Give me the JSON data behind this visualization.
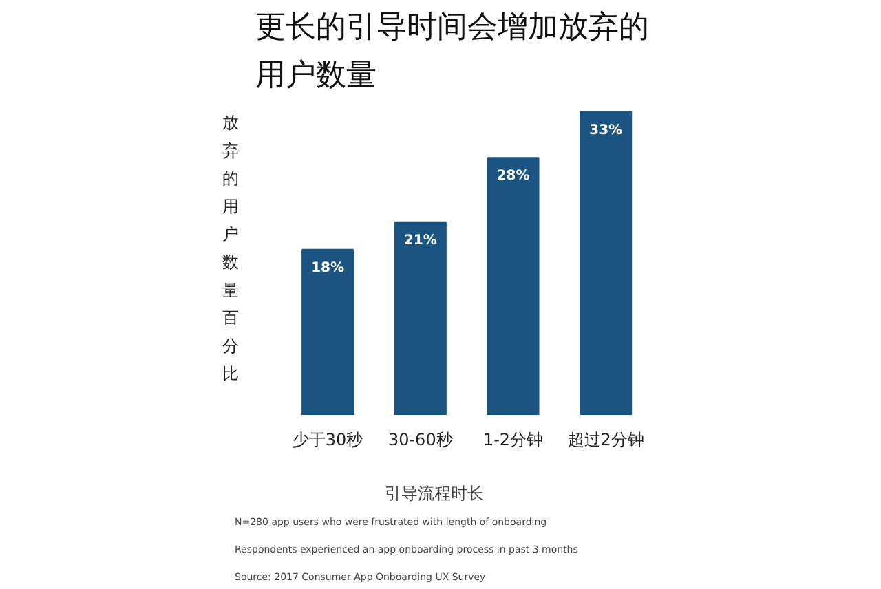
{
  "chart_data": {
    "type": "bar",
    "title": "更长的引导时间会增加放弃的用户数量",
    "xlabel": "引导流程时长",
    "ylabel": "放弃的用户数量百分比",
    "categories": [
      "少于30秒",
      "30-60秒",
      "1-2分钟",
      "超过2分钟"
    ],
    "values": [
      18,
      21,
      28,
      33
    ],
    "color": "#1b5480",
    "value_labels": [
      "18%",
      "21%",
      "28%",
      "33%"
    ],
    "grid": false,
    "annotations": [
      "N=280 app users who were frustrated with length of onboarding",
      "Respondents experienced an app onboarding process in past 3 months",
      "Source: 2017 Consumer App Onboarding UX Survey"
    ]
  }
}
